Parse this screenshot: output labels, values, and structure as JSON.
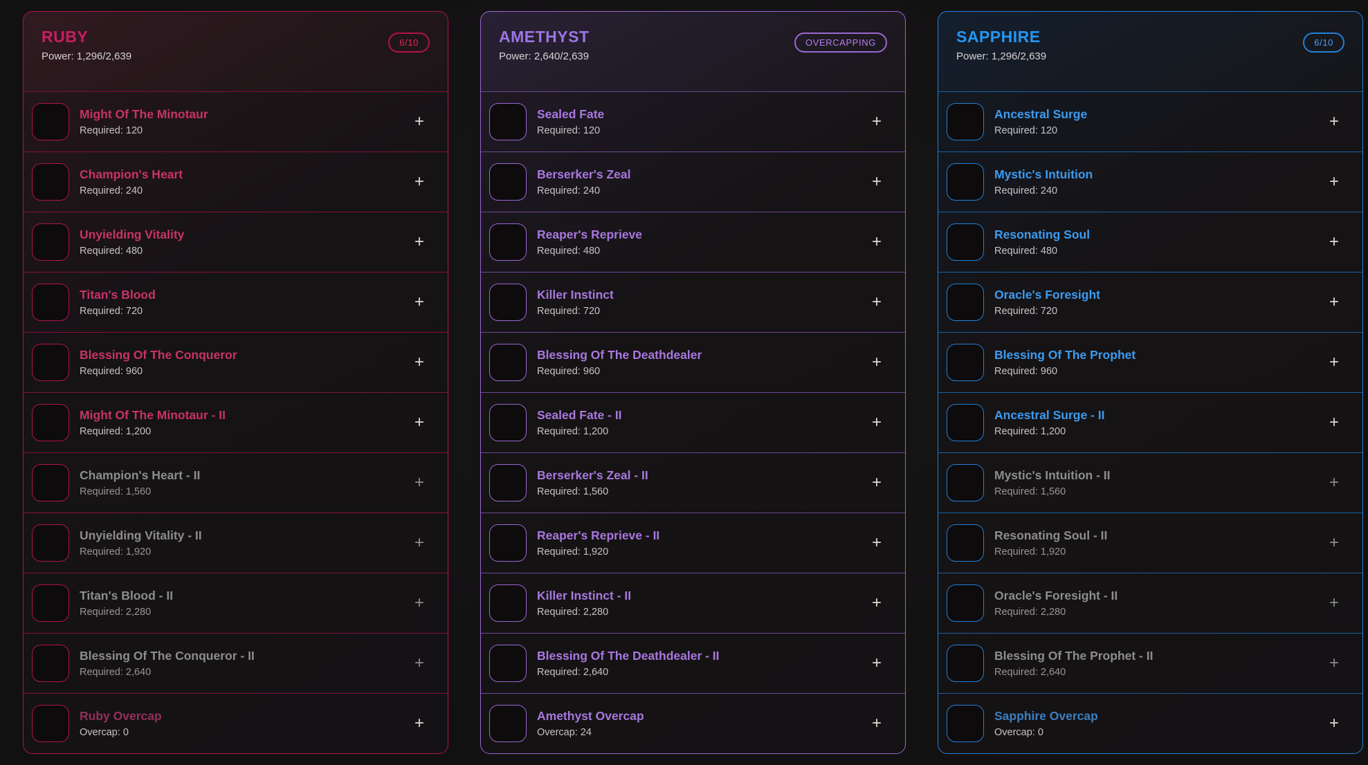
{
  "ui": {
    "plus_label": "+"
  },
  "panels": [
    {
      "id": "ruby",
      "title": "RUBY",
      "power": "Power: 1,296/2,639",
      "badge": "6/10",
      "colors": {
        "accent": "#b2124f",
        "separator": "#84103d",
        "header_tint": "#301a20",
        "title": "#c81e5f",
        "item_title": "#c73368",
        "dim_title": "#93305a",
        "badge_text": "#e3265f"
      },
      "items": [
        {
          "name": "Might Of The Minotaur",
          "sub": "Required: 120",
          "state": "enabled",
          "icon": {
            "name": "minotaur-flames-icon",
            "colors": [
              "#ffc35c",
              "#e2571d",
              "#41100a"
            ]
          }
        },
        {
          "name": "Champion's Heart",
          "sub": "Required: 240",
          "state": "enabled",
          "icon": {
            "name": "flame-heart-icon",
            "colors": [
              "#ff5740",
              "#c3170f",
              "#2a0605"
            ]
          }
        },
        {
          "name": "Unyielding Vitality",
          "sub": "Required: 480",
          "state": "enabled",
          "icon": {
            "name": "empowered-figure-icon",
            "colors": [
              "#ff8a50",
              "#b7271a",
              "#260705"
            ]
          }
        },
        {
          "name": "Titan's Blood",
          "sub": "Required: 720",
          "state": "enabled",
          "icon": {
            "name": "blood-chalice-icon",
            "colors": [
              "#ff2950",
              "#98101f",
              "#1d0407"
            ]
          }
        },
        {
          "name": "Blessing Of The Conqueror",
          "sub": "Required: 960",
          "state": "enabled",
          "icon": {
            "name": "demon-visage-icon",
            "colors": [
              "#d63f77",
              "#5f1038",
              "#170410"
            ]
          }
        },
        {
          "name": "Might Of The Minotaur - II",
          "sub": "Required: 1,200",
          "state": "enabled",
          "icon": {
            "name": "minotaur-flames-icon",
            "colors": [
              "#ffc35c",
              "#e2571d",
              "#41100a"
            ]
          }
        },
        {
          "name": "Champion's Heart - II",
          "sub": "Required: 1,560",
          "state": "disabled",
          "icon": {
            "name": "flame-heart-icon",
            "colors": [
              "#ff5740",
              "#c3170f",
              "#2a0605"
            ]
          }
        },
        {
          "name": "Unyielding Vitality - II",
          "sub": "Required: 1,920",
          "state": "disabled",
          "icon": {
            "name": "empowered-figure-icon",
            "colors": [
              "#ff8a50",
              "#b7271a",
              "#260705"
            ]
          }
        },
        {
          "name": "Titan's Blood - II",
          "sub": "Required: 2,280",
          "state": "disabled",
          "icon": {
            "name": "blood-chalice-icon",
            "colors": [
              "#ff2950",
              "#98101f",
              "#1d0407"
            ]
          }
        },
        {
          "name": "Blessing Of The Conqueror - II",
          "sub": "Required: 2,640",
          "state": "disabled",
          "icon": {
            "name": "demon-visage-icon",
            "colors": [
              "#d63f77",
              "#5f1038",
              "#170410"
            ]
          }
        },
        {
          "name": "Ruby Overcap",
          "sub": "Overcap: 0",
          "state": "dim",
          "icon": {
            "name": "demon-visage-icon",
            "colors": [
              "#b0315f",
              "#4a0d29",
              "#12030b"
            ]
          }
        }
      ]
    },
    {
      "id": "amethyst",
      "title": "AMETHYST",
      "power": "Power: 2,640/2,639",
      "badge": "OVERCAPPING",
      "colors": {
        "accent": "#9a67d3",
        "separator": "#6b4896",
        "header_tint": "#282134",
        "title": "#9d74e4",
        "item_title": "#a878de",
        "dim_title": "#a878de",
        "badge_text": "#b77ff0"
      },
      "items": [
        {
          "name": "Sealed Fate",
          "sub": "Required: 120",
          "state": "enabled",
          "icon": {
            "name": "sealed-blade-icon",
            "colors": [
              "#e86bff",
              "#6a3bbf",
              "#1d0f36"
            ]
          }
        },
        {
          "name": "Berserker's Zeal",
          "sub": "Required: 240",
          "state": "enabled",
          "icon": {
            "name": "veiled-figure-icon",
            "colors": [
              "#dca6ec",
              "#8e3fc0",
              "#2a0f3d"
            ]
          }
        },
        {
          "name": "Reaper's Reprieve",
          "sub": "Required: 480",
          "state": "enabled",
          "icon": {
            "name": "spirit-swirl-icon",
            "colors": [
              "#c59bff",
              "#7a2fb4",
              "#220b33"
            ]
          }
        },
        {
          "name": "Killer Instinct",
          "sub": "Required: 720",
          "state": "enabled",
          "icon": {
            "name": "flaming-hand-icon",
            "colors": [
              "#ff4f86",
              "#a1134e",
              "#270616"
            ]
          }
        },
        {
          "name": "Blessing Of The Deathdealer",
          "sub": "Required: 960",
          "state": "enabled",
          "icon": {
            "name": "screaming-wraith-icon",
            "colors": [
              "#8f9bdc",
              "#50319f",
              "#171034"
            ]
          }
        },
        {
          "name": "Sealed Fate - II",
          "sub": "Required: 1,200",
          "state": "enabled",
          "icon": {
            "name": "sealed-blade-icon",
            "colors": [
              "#e86bff",
              "#6a3bbf",
              "#1d0f36"
            ]
          }
        },
        {
          "name": "Berserker's Zeal - II",
          "sub": "Required: 1,560",
          "state": "enabled",
          "icon": {
            "name": "veiled-figure-icon",
            "colors": [
              "#dca6ec",
              "#8e3fc0",
              "#2a0f3d"
            ]
          }
        },
        {
          "name": "Reaper's Reprieve - II",
          "sub": "Required: 1,920",
          "state": "enabled",
          "icon": {
            "name": "spirit-swirl-icon",
            "colors": [
              "#c59bff",
              "#7a2fb4",
              "#220b33"
            ]
          }
        },
        {
          "name": "Killer Instinct - II",
          "sub": "Required: 2,280",
          "state": "enabled",
          "icon": {
            "name": "flaming-hand-icon",
            "colors": [
              "#ff4f86",
              "#a1134e",
              "#270616"
            ]
          }
        },
        {
          "name": "Blessing Of The Deathdealer - II",
          "sub": "Required: 2,640",
          "state": "enabled",
          "icon": {
            "name": "screaming-wraith-icon",
            "colors": [
              "#8f9bdc",
              "#50319f",
              "#171034"
            ]
          }
        },
        {
          "name": "Amethyst Overcap",
          "sub": "Overcap: 24",
          "state": "enabled",
          "icon": {
            "name": "screaming-wraith-icon",
            "colors": [
              "#8f9bdc",
              "#50319f",
              "#171034"
            ]
          }
        }
      ]
    },
    {
      "id": "sapphire",
      "title": "SAPPHIRE",
      "power": "Power: 1,296/2,639",
      "badge": "6/10",
      "colors": {
        "accent": "#2180d8",
        "separator": "#195f9f",
        "header_tint": "#141f2d",
        "title": "#2596f2",
        "item_title": "#3d9bf0",
        "dim_title": "#3b7fc0",
        "badge_text": "#4aa2f4"
      },
      "items": [
        {
          "name": "Ancestral Surge",
          "sub": "Required: 120",
          "state": "enabled",
          "icon": {
            "name": "frost-golem-icon",
            "colors": [
              "#6ec6f7",
              "#1d62b6",
              "#0a1c33"
            ]
          }
        },
        {
          "name": "Mystic's Intuition",
          "sub": "Required: 240",
          "state": "enabled",
          "icon": {
            "name": "water-swirl-icon",
            "colors": [
              "#9fe8f0",
              "#1e8fd6",
              "#0a2033"
            ]
          }
        },
        {
          "name": "Resonating Soul",
          "sub": "Required: 480",
          "state": "enabled",
          "icon": {
            "name": "soul-orb-icon",
            "colors": [
              "#9a6bff",
              "#4029a8",
              "#120a2e"
            ]
          }
        },
        {
          "name": "Oracle's Foresight",
          "sub": "Required: 720",
          "state": "enabled",
          "icon": {
            "name": "spirit-oracle-icon",
            "colors": [
              "#8cf4ff",
              "#12a3c4",
              "#06303f"
            ]
          }
        },
        {
          "name": "Blessing Of The Prophet",
          "sub": "Required: 960",
          "state": "enabled",
          "icon": {
            "name": "armored-prophet-icon",
            "colors": [
              "#6f86ff",
              "#2f3aa6",
              "#0d1136"
            ]
          }
        },
        {
          "name": "Ancestral Surge - II",
          "sub": "Required: 1,200",
          "state": "enabled",
          "icon": {
            "name": "frost-golem-icon",
            "colors": [
              "#6ec6f7",
              "#1d62b6",
              "#0a1c33"
            ]
          }
        },
        {
          "name": "Mystic's Intuition - II",
          "sub": "Required: 1,560",
          "state": "disabled",
          "icon": {
            "name": "water-swirl-icon",
            "colors": [
              "#9fe8f0",
              "#1e8fd6",
              "#0a2033"
            ]
          }
        },
        {
          "name": "Resonating Soul - II",
          "sub": "Required: 1,920",
          "state": "disabled",
          "icon": {
            "name": "soul-orb-icon",
            "colors": [
              "#9a6bff",
              "#4029a8",
              "#120a2e"
            ]
          }
        },
        {
          "name": "Oracle's Foresight - II",
          "sub": "Required: 2,280",
          "state": "disabled",
          "icon": {
            "name": "spirit-oracle-icon",
            "colors": [
              "#8cf4ff",
              "#12a3c4",
              "#06303f"
            ]
          }
        },
        {
          "name": "Blessing Of The Prophet - II",
          "sub": "Required: 2,640",
          "state": "disabled",
          "icon": {
            "name": "armored-prophet-icon",
            "colors": [
              "#6f86ff",
              "#2f3aa6",
              "#0d1136"
            ]
          }
        },
        {
          "name": "Sapphire Overcap",
          "sub": "Overcap: 0",
          "state": "dim",
          "icon": {
            "name": "armored-prophet-icon",
            "colors": [
              "#5673d8",
              "#273188",
              "#0b0e2c"
            ]
          }
        }
      ]
    }
  ]
}
